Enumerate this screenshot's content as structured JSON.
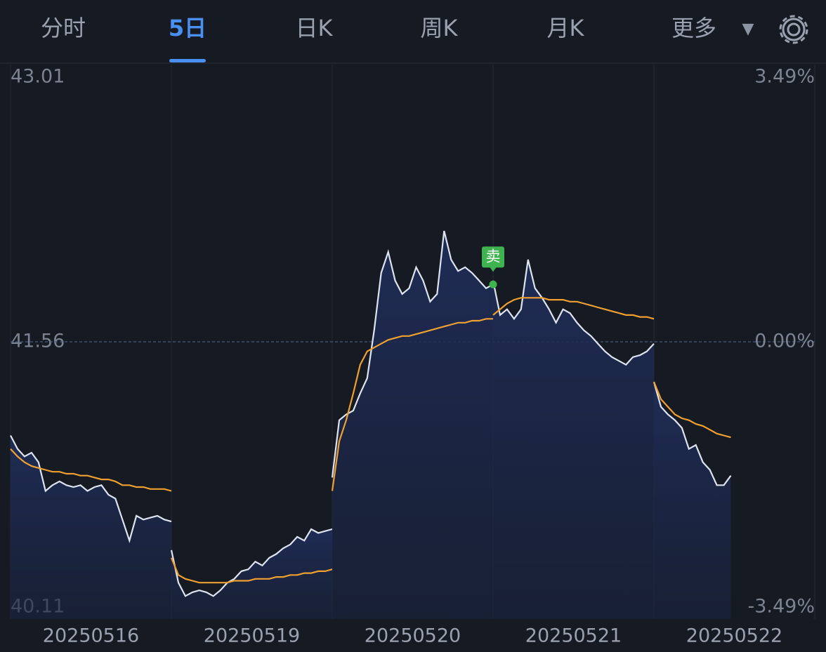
{
  "tabs": {
    "items": [
      "分时",
      "5日",
      "日K",
      "周K",
      "月K",
      "更多"
    ],
    "active": 1
  },
  "chart_data": {
    "type": "line",
    "ylim": [
      40.11,
      43.01
    ],
    "yticks": [
      40.11,
      41.56,
      43.01
    ],
    "y2lim": [
      -3.49,
      3.49
    ],
    "y2ticks": [
      {
        "value": -3.49,
        "label": "-3.49%"
      },
      {
        "value": 0,
        "label": "0.00%"
      },
      {
        "value": 3.49,
        "label": "3.49%"
      }
    ],
    "price_color": "#dde4f0",
    "avg_color": "#f0a030",
    "days": [
      {
        "date": "20250516",
        "price": [
          41.07,
          41.0,
          40.96,
          40.98,
          40.93,
          40.78,
          40.81,
          40.83,
          40.81,
          40.8,
          40.81,
          40.78,
          40.8,
          40.81,
          40.76,
          40.74,
          40.63,
          40.52,
          40.65,
          40.63,
          40.64,
          40.65,
          40.63,
          40.62
        ],
        "avg": [
          41.0,
          40.96,
          40.93,
          40.91,
          40.9,
          40.89,
          40.88,
          40.88,
          40.87,
          40.87,
          40.86,
          40.86,
          40.85,
          40.84,
          40.84,
          40.83,
          40.81,
          40.81,
          40.8,
          40.8,
          40.79,
          40.79,
          40.79,
          40.78
        ]
      },
      {
        "date": "20250519",
        "price": [
          40.47,
          40.3,
          40.23,
          40.25,
          40.26,
          40.25,
          40.23,
          40.26,
          40.3,
          40.32,
          40.36,
          40.37,
          40.41,
          40.39,
          40.43,
          40.45,
          40.48,
          40.5,
          40.54,
          40.52,
          40.58,
          40.56,
          40.57,
          40.58
        ],
        "avg": [
          40.43,
          40.34,
          40.32,
          40.31,
          40.3,
          40.3,
          40.3,
          40.3,
          40.3,
          40.31,
          40.31,
          40.31,
          40.32,
          40.32,
          40.32,
          40.33,
          40.33,
          40.34,
          40.34,
          40.35,
          40.35,
          40.36,
          40.36,
          40.37
        ]
      },
      {
        "date": "20250520",
        "price": [
          40.85,
          41.15,
          41.18,
          41.2,
          41.29,
          41.37,
          41.62,
          41.92,
          42.03,
          41.88,
          41.81,
          41.84,
          41.95,
          41.88,
          41.77,
          41.81,
          42.14,
          41.99,
          41.93,
          41.95,
          41.92,
          41.88,
          41.84,
          41.86
        ],
        "avg": [
          40.78,
          41.04,
          41.15,
          41.29,
          41.44,
          41.51,
          41.53,
          41.55,
          41.57,
          41.58,
          41.59,
          41.59,
          41.6,
          41.61,
          41.62,
          41.63,
          41.64,
          41.65,
          41.66,
          41.66,
          41.67,
          41.67,
          41.68,
          41.68
        ]
      },
      {
        "date": "20250521",
        "price": [
          41.88,
          41.7,
          41.73,
          41.68,
          41.73,
          41.99,
          41.84,
          41.79,
          41.73,
          41.66,
          41.73,
          41.71,
          41.66,
          41.62,
          41.59,
          41.55,
          41.51,
          41.48,
          41.46,
          41.44,
          41.48,
          41.49,
          41.51,
          41.55
        ],
        "avg": [
          41.7,
          41.73,
          41.76,
          41.78,
          41.79,
          41.79,
          41.79,
          41.79,
          41.78,
          41.78,
          41.78,
          41.77,
          41.77,
          41.76,
          41.75,
          41.74,
          41.73,
          41.72,
          41.71,
          41.7,
          41.7,
          41.69,
          41.69,
          41.68
        ]
      },
      {
        "date": "20250522",
        "price": [
          41.35,
          41.22,
          41.18,
          41.15,
          41.11,
          41.0,
          41.02,
          40.93,
          40.89,
          40.81,
          40.81,
          40.86
        ],
        "avg": [
          41.35,
          41.26,
          41.22,
          41.18,
          41.16,
          41.15,
          41.13,
          41.12,
          41.1,
          41.08,
          41.07,
          41.06
        ]
      }
    ],
    "annotations": [
      {
        "text": "卖",
        "day": 2,
        "value": 41.86
      }
    ]
  }
}
